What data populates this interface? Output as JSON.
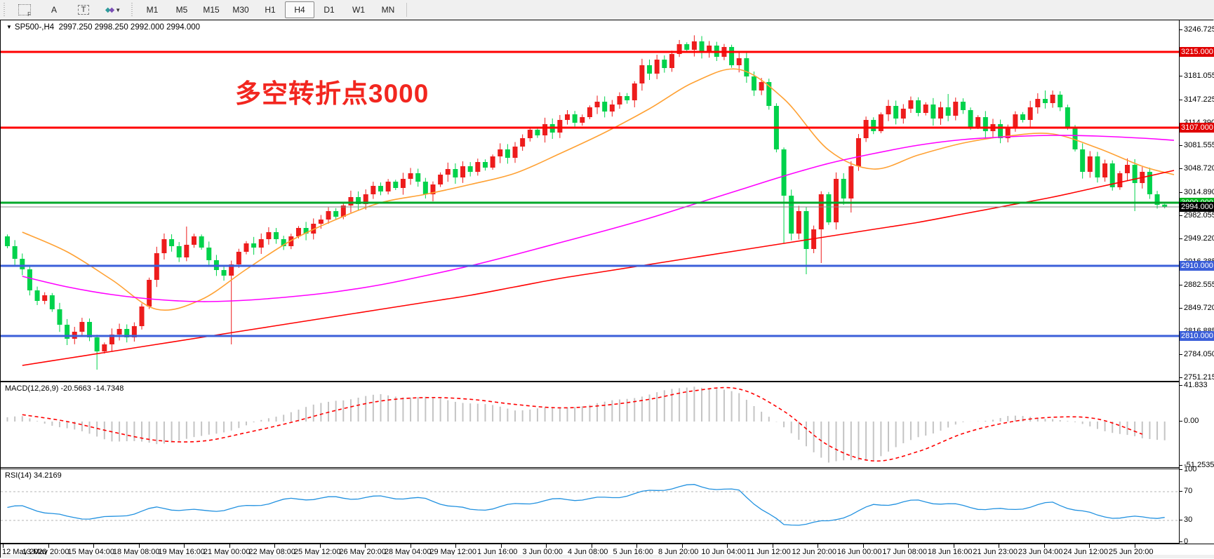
{
  "toolbar": {
    "icons": [
      {
        "name": "crosshair-f-icon"
      },
      {
        "name": "text-label-icon",
        "glyph": "A"
      },
      {
        "name": "text-box-icon",
        "glyph": "T"
      },
      {
        "name": "styles-dropdown-icon"
      }
    ],
    "timeframes": [
      "M1",
      "M5",
      "M15",
      "M30",
      "H1",
      "H4",
      "D1",
      "W1",
      "MN"
    ],
    "active_timeframe": "H4"
  },
  "symbol_line": {
    "symbol": "SP500-,H4",
    "open": "2997.250",
    "high": "2998.250",
    "low": "2992.000",
    "close": "2994.000"
  },
  "annotation": {
    "text": "多空转折点3000",
    "color": "#f2261f"
  },
  "price_axis": {
    "ticks": [
      3246.725,
      3213.89,
      3181.055,
      3147.225,
      3114.39,
      3081.555,
      3048.72,
      3014.89,
      2982.055,
      2949.22,
      2916.385,
      2882.555,
      2849.72,
      2816.885,
      2784.05,
      2751.215
    ],
    "boxes": [
      {
        "label": "3215.000",
        "price": 3215.0,
        "bg": "#e00000"
      },
      {
        "label": "3107.000",
        "price": 3107.0,
        "bg": "#e00000"
      },
      {
        "label": "3000.000",
        "price": 3000.0,
        "bg": "#00b41e"
      },
      {
        "label": "2994.000",
        "price": 2994.0,
        "bg": "#000000"
      },
      {
        "label": "2910.000",
        "price": 2910.0,
        "bg": "#3b5fd9"
      },
      {
        "label": "2810.000",
        "price": 2810.0,
        "bg": "#3b5fd9"
      }
    ]
  },
  "time_axis": {
    "labels": [
      "12 May 2020",
      "13 May 20:00",
      "15 May 04:00",
      "18 May 08:00",
      "19 May 16:00",
      "21 May 00:00",
      "22 May 08:00",
      "25 May 12:00",
      "26 May 20:00",
      "28 May 04:00",
      "29 May 12:00",
      "1 Jun 16:00",
      "3 Jun 00:00",
      "4 Jun 08:00",
      "5 Jun 16:00",
      "8 Jun 20:00",
      "10 Jun 04:00",
      "11 Jun 12:00",
      "12 Jun 20:00",
      "16 Jun 00:00",
      "17 Jun 08:00",
      "18 Jun 16:00",
      "21 Jun 23:00",
      "23 Jun 04:00",
      "24 Jun 12:00",
      "25 Jun 20:00"
    ]
  },
  "chart_data": [
    {
      "type": "candlestick",
      "title": "SP500- H4 main chart",
      "price_range": [
        2747,
        3260
      ],
      "bar_count": 156,
      "up_color": "#ed1c1c",
      "down_color": "#00d24b",
      "open_first": 2952,
      "closes": [
        2938,
        2920,
        2905,
        2875,
        2860,
        2868,
        2848,
        2826,
        2806,
        2816,
        2830,
        2808,
        2788,
        2798,
        2812,
        2820,
        2808,
        2824,
        2852,
        2890,
        2928,
        2948,
        2938,
        2922,
        2940,
        2952,
        2936,
        2918,
        2904,
        2896,
        2912,
        2930,
        2942,
        2936,
        2948,
        2958,
        2948,
        2938,
        2952,
        2964,
        2956,
        2970,
        2976,
        2988,
        2980,
        2996,
        3008,
        2998,
        3012,
        3024,
        3016,
        3030,
        3021,
        3034,
        3042,
        3030,
        3012,
        3026,
        3040,
        3048,
        3036,
        3052,
        3044,
        3058,
        3050,
        3066,
        3076,
        3064,
        3080,
        3092,
        3104,
        3096,
        3112,
        3100,
        3118,
        3126,
        3114,
        3122,
        3136,
        3144,
        3130,
        3140,
        3152,
        3146,
        3170,
        3196,
        3184,
        3204,
        3192,
        3212,
        3226,
        3218,
        3230,
        3214,
        3224,
        3208,
        3222,
        3196,
        3206,
        3180,
        3160,
        3172,
        3138,
        3076,
        3010,
        2956,
        2988,
        2934,
        2962,
        3012,
        2972,
        3034,
        3006,
        3052,
        3092,
        3118,
        3102,
        3126,
        3138,
        3120,
        3134,
        3146,
        3128,
        3140,
        3120,
        3136,
        3124,
        3144,
        3132,
        3108,
        3122,
        3102,
        3112,
        3092,
        3106,
        3126,
        3118,
        3136,
        3148,
        3142,
        3154,
        3136,
        3108,
        3076,
        3044,
        3066,
        3036,
        3056,
        3022,
        3042,
        3054,
        3028,
        3044,
        3012,
        2997,
        2994
      ],
      "special_wicks": {
        "12": {
          "low": 2762
        },
        "24": {
          "high": 2966
        },
        "30": {
          "low": 2798
        },
        "57": {
          "low": 3002
        },
        "84": {
          "low": 3136
        },
        "90": {
          "high": 3232
        },
        "104": {
          "low": 2942
        },
        "107": {
          "low": 2898
        },
        "109": {
          "low": 2914
        },
        "113": {
          "low": 2986
        },
        "126": {
          "high": 3155
        },
        "139": {
          "high": 3160
        },
        "151": {
          "low": 2988
        }
      },
      "last_bar": [
        2997.25,
        2998.25,
        2992.0,
        2994.0
      ],
      "moving_averages": [
        {
          "name": "ma-fast",
          "color": "#ffa133",
          "values": [
            2958,
            2930,
            2890,
            2848,
            2862,
            2905,
            2946,
            2976,
            3000,
            3012,
            3026,
            3042,
            3070,
            3100,
            3134,
            3172,
            3190,
            3148,
            3075,
            3048,
            3068,
            3085,
            3095,
            3098,
            3078,
            3052,
            3040
          ]
        },
        {
          "name": "ma-mid",
          "color": "#ff00ff",
          "values": [
            2895,
            2880,
            2869,
            2862,
            2859,
            2861,
            2866,
            2873,
            2883,
            2896,
            2910,
            2926,
            2943,
            2960,
            2978,
            2998,
            3018,
            3038,
            3056,
            3070,
            3082,
            3090,
            3094,
            3096,
            3095,
            3092,
            3089
          ]
        },
        {
          "name": "ma-slow",
          "color": "#ff0000",
          "values": [
            2768,
            2778,
            2788,
            2798,
            2808,
            2818,
            2828,
            2838,
            2848,
            2858,
            2868,
            2880,
            2892,
            2902,
            2912,
            2922,
            2932,
            2942,
            2952,
            2962,
            2972,
            2984,
            2996,
            3008,
            3022,
            3036,
            3046
          ]
        }
      ],
      "horizontal_lines": [
        {
          "price": 3215.0,
          "color": "#ff0000",
          "width": 3
        },
        {
          "price": 3107.0,
          "color": "#ff0000",
          "width": 3
        },
        {
          "price": 3000.0,
          "color": "#00a82a",
          "width": 3
        },
        {
          "price": 2994.0,
          "color": "#888888",
          "width": 1
        },
        {
          "price": 2910.0,
          "color": "#3b5fd9",
          "width": 3
        },
        {
          "price": 2810.0,
          "color": "#3b5fd9",
          "width": 3
        }
      ]
    },
    {
      "type": "bar",
      "title": "MACD(12,26,9)",
      "label_name": "MACD(12,26,9)",
      "label_values": "-20.5663 -14.7348",
      "axis_labels": [
        "41.833",
        "0.00",
        "-51.2535"
      ],
      "axis_values": [
        41.833,
        0,
        -51.2535
      ],
      "ylim": [
        -51.2535,
        41.833
      ],
      "histogram_color": "#c4c4c4",
      "signal_color": "#ff0000",
      "macd_anchors": [
        5,
        -8,
        -22,
        -26,
        -18,
        -5,
        12,
        25,
        31,
        28,
        22,
        14,
        16,
        22,
        32,
        42,
        33,
        -8,
        -48,
        -44,
        -18,
        -2,
        6,
        4,
        -8,
        -20.6
      ],
      "signal_anchors": [
        8,
        0,
        -12,
        -22,
        -23,
        -13,
        -1,
        13,
        24,
        28,
        26,
        20,
        16,
        19,
        26,
        36,
        38,
        12,
        -28,
        -46,
        -35,
        -14,
        -1,
        5,
        3,
        -14.7
      ]
    },
    {
      "type": "line",
      "title": "RSI(14)",
      "label_name": "RSI(14)",
      "label_values": "34.2169",
      "axis_labels": [
        "100",
        "70",
        "30",
        "0"
      ],
      "axis_values": [
        100,
        70,
        30,
        0
      ],
      "ylim": [
        0,
        100
      ],
      "levels": [
        70,
        30
      ],
      "line_color": "#2191e0",
      "rsi_anchors": [
        48,
        34,
        35,
        46,
        43,
        50,
        58,
        62,
        63,
        58,
        45,
        52,
        58,
        62,
        70,
        78,
        72,
        22,
        28,
        52,
        56,
        50,
        45,
        53,
        37,
        34.2
      ],
      "last_value": 34.2169
    }
  ]
}
